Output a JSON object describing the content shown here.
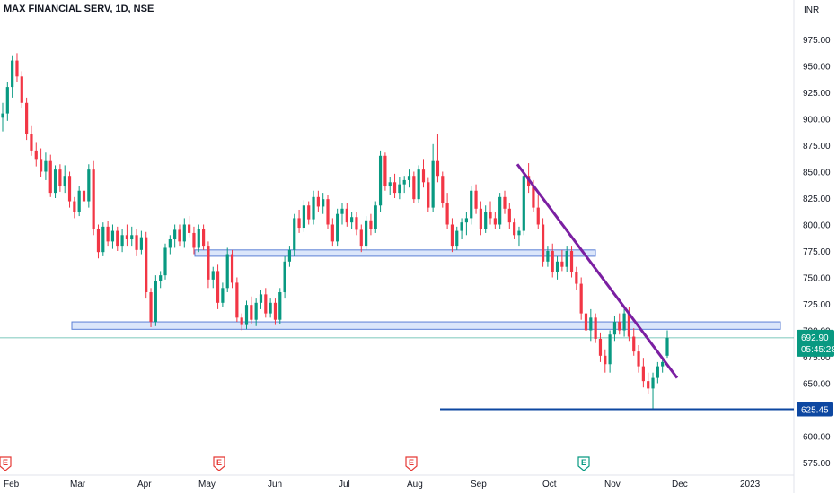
{
  "header": {
    "symbol": "MAX FINANCIAL SERV, 1D, NSE",
    "currency": "INR"
  },
  "chart_data": {
    "type": "candlestick",
    "ylim": [
      560,
      995
    ],
    "y_ticks": [
      575,
      600,
      625,
      650,
      675,
      700,
      725,
      750,
      775,
      800,
      825,
      850,
      875,
      900,
      925,
      950,
      975
    ],
    "y_tick_labels": [
      "575.00",
      "600.00",
      "625.00",
      "650.00",
      "675.00",
      "700.00",
      "725.00",
      "750.00",
      "775.00",
      "800.00",
      "825.00",
      "850.00",
      "875.00",
      "900.00",
      "925.00",
      "950.00",
      "975.00"
    ],
    "x_labels": [
      "Feb",
      "Mar",
      "Apr",
      "May",
      "Jun",
      "Jul",
      "Aug",
      "Sep",
      "Oct",
      "Nov",
      "Dec",
      "2023"
    ],
    "last_price": {
      "label": "692.90",
      "countdown": "05:45:28",
      "value": 692.9,
      "color": "#089981"
    },
    "support_line": {
      "label": "625.45",
      "value": 625.45,
      "color": "#0d47a1"
    },
    "zones": [
      {
        "low": 770,
        "high": 776,
        "color": "#dbe6fa",
        "border": "#5b7fd6"
      },
      {
        "low": 701,
        "high": 708,
        "color": "#dbe6fa",
        "border": "#5b7fd6"
      }
    ],
    "trendline": {
      "from": 857,
      "to": 655,
      "color": "#7b1fa2"
    },
    "events": [
      {
        "letter": "E",
        "color": "#e53935"
      },
      {
        "letter": "E",
        "color": "#e53935"
      },
      {
        "letter": "E",
        "color": "#e53935"
      },
      {
        "letter": "E",
        "color": "#089981"
      }
    ],
    "candles": [
      [
        901,
        915,
        888,
        905
      ],
      [
        905,
        935,
        898,
        930
      ],
      [
        930,
        960,
        920,
        955
      ],
      [
        955,
        962,
        935,
        940
      ],
      [
        940,
        945,
        910,
        915
      ],
      [
        915,
        920,
        880,
        886
      ],
      [
        886,
        893,
        865,
        870
      ],
      [
        870,
        878,
        855,
        862
      ],
      [
        862,
        872,
        845,
        850
      ],
      [
        850,
        868,
        842,
        860
      ],
      [
        860,
        866,
        826,
        830
      ],
      [
        830,
        856,
        825,
        852
      ],
      [
        852,
        857,
        831,
        836
      ],
      [
        836,
        856,
        830,
        846
      ],
      [
        846,
        850,
        816,
        822
      ],
      [
        822,
        826,
        806,
        812
      ],
      [
        812,
        836,
        808,
        832
      ],
      [
        832,
        838,
        817,
        822
      ],
      [
        822,
        857,
        816,
        852
      ],
      [
        852,
        860,
        790,
        796
      ],
      [
        796,
        800,
        768,
        774
      ],
      [
        774,
        802,
        770,
        798
      ],
      [
        798,
        803,
        780,
        784
      ],
      [
        784,
        800,
        777,
        794
      ],
      [
        794,
        798,
        775,
        780
      ],
      [
        780,
        796,
        774,
        790
      ],
      [
        790,
        800,
        780,
        786
      ],
      [
        786,
        798,
        780,
        790
      ],
      [
        790,
        796,
        770,
        776
      ],
      [
        776,
        794,
        772,
        788
      ],
      [
        788,
        793,
        730,
        736
      ],
      [
        736,
        740,
        703,
        708
      ],
      [
        708,
        752,
        704,
        747
      ],
      [
        747,
        756,
        740,
        752
      ],
      [
        752,
        782,
        748,
        778
      ],
      [
        778,
        790,
        772,
        786
      ],
      [
        786,
        800,
        778,
        795
      ],
      [
        795,
        800,
        780,
        784
      ],
      [
        784,
        806,
        778,
        800
      ],
      [
        800,
        808,
        788,
        792
      ],
      [
        792,
        798,
        772,
        778
      ],
      [
        778,
        800,
        774,
        796
      ],
      [
        796,
        800,
        776,
        780
      ],
      [
        780,
        784,
        740,
        748
      ],
      [
        748,
        760,
        740,
        756
      ],
      [
        756,
        762,
        720,
        726
      ],
      [
        726,
        745,
        722,
        740
      ],
      [
        740,
        778,
        736,
        772
      ],
      [
        772,
        776,
        740,
        745
      ],
      [
        745,
        750,
        708,
        712
      ],
      [
        712,
        716,
        700,
        705
      ],
      [
        705,
        728,
        701,
        724
      ],
      [
        724,
        732,
        706,
        710
      ],
      [
        710,
        730,
        704,
        726
      ],
      [
        726,
        738,
        720,
        734
      ],
      [
        734,
        740,
        712,
        716
      ],
      [
        716,
        730,
        712,
        726
      ],
      [
        726,
        730,
        705,
        710
      ],
      [
        710,
        740,
        706,
        736
      ],
      [
        736,
        770,
        730,
        765
      ],
      [
        765,
        780,
        760,
        776
      ],
      [
        776,
        810,
        770,
        806
      ],
      [
        806,
        814,
        792,
        797
      ],
      [
        797,
        823,
        793,
        818
      ],
      [
        818,
        822,
        800,
        805
      ],
      [
        805,
        832,
        800,
        826
      ],
      [
        826,
        832,
        812,
        817
      ],
      [
        817,
        830,
        810,
        824
      ],
      [
        824,
        828,
        796,
        800
      ],
      [
        800,
        806,
        780,
        784
      ],
      [
        784,
        815,
        780,
        810
      ],
      [
        810,
        820,
        800,
        815
      ],
      [
        815,
        820,
        798,
        802
      ],
      [
        802,
        812,
        796,
        807
      ],
      [
        807,
        812,
        790,
        795
      ],
      [
        795,
        800,
        774,
        780
      ],
      [
        780,
        808,
        776,
        804
      ],
      [
        804,
        810,
        790,
        796
      ],
      [
        796,
        822,
        792,
        818
      ],
      [
        818,
        870,
        812,
        865
      ],
      [
        865,
        868,
        832,
        836
      ],
      [
        836,
        845,
        828,
        840
      ],
      [
        840,
        848,
        825,
        830
      ],
      [
        830,
        845,
        824,
        838
      ],
      [
        838,
        846,
        830,
        842
      ],
      [
        842,
        852,
        835,
        846
      ],
      [
        846,
        850,
        820,
        824
      ],
      [
        824,
        856,
        820,
        852
      ],
      [
        852,
        862,
        835,
        840
      ],
      [
        840,
        844,
        812,
        816
      ],
      [
        816,
        876,
        812,
        860
      ],
      [
        860,
        886,
        840,
        846
      ],
      [
        846,
        850,
        816,
        820
      ],
      [
        820,
        830,
        796,
        800
      ],
      [
        800,
        806,
        774,
        780
      ],
      [
        780,
        798,
        776,
        794
      ],
      [
        794,
        806,
        786,
        802
      ],
      [
        802,
        812,
        790,
        806
      ],
      [
        806,
        836,
        800,
        832
      ],
      [
        832,
        838,
        810,
        815
      ],
      [
        815,
        822,
        790,
        796
      ],
      [
        796,
        818,
        792,
        812
      ],
      [
        812,
        822,
        800,
        806
      ],
      [
        806,
        812,
        796,
        800
      ],
      [
        800,
        830,
        796,
        826
      ],
      [
        826,
        832,
        810,
        815
      ],
      [
        815,
        820,
        796,
        802
      ],
      [
        802,
        806,
        786,
        790
      ],
      [
        790,
        798,
        780,
        794
      ],
      [
        794,
        852,
        790,
        846
      ],
      [
        846,
        858,
        830,
        836
      ],
      [
        836,
        842,
        812,
        816
      ],
      [
        816,
        828,
        796,
        800
      ],
      [
        800,
        806,
        760,
        765
      ],
      [
        765,
        780,
        760,
        775
      ],
      [
        775,
        782,
        750,
        755
      ],
      [
        755,
        770,
        748,
        765
      ],
      [
        765,
        776,
        756,
        760
      ],
      [
        760,
        780,
        755,
        775
      ],
      [
        775,
        780,
        750,
        755
      ],
      [
        755,
        760,
        738,
        744
      ],
      [
        744,
        750,
        710,
        716
      ],
      [
        716,
        722,
        666,
        700
      ],
      [
        700,
        720,
        690,
        712
      ],
      [
        712,
        716,
        688,
        692
      ],
      [
        692,
        698,
        670,
        676
      ],
      [
        676,
        682,
        660,
        668
      ],
      [
        668,
        700,
        660,
        696
      ],
      [
        696,
        714,
        690,
        708
      ],
      [
        708,
        716,
        696,
        700
      ],
      [
        700,
        720,
        694,
        716
      ],
      [
        716,
        722,
        690,
        694
      ],
      [
        694,
        702,
        676,
        680
      ],
      [
        680,
        686,
        660,
        666
      ],
      [
        666,
        674,
        646,
        652
      ],
      [
        652,
        660,
        640,
        645
      ],
      [
        645,
        660,
        625,
        655
      ],
      [
        655,
        670,
        650,
        666
      ],
      [
        666,
        672,
        660,
        670
      ],
      [
        676,
        700,
        674,
        693
      ]
    ]
  }
}
